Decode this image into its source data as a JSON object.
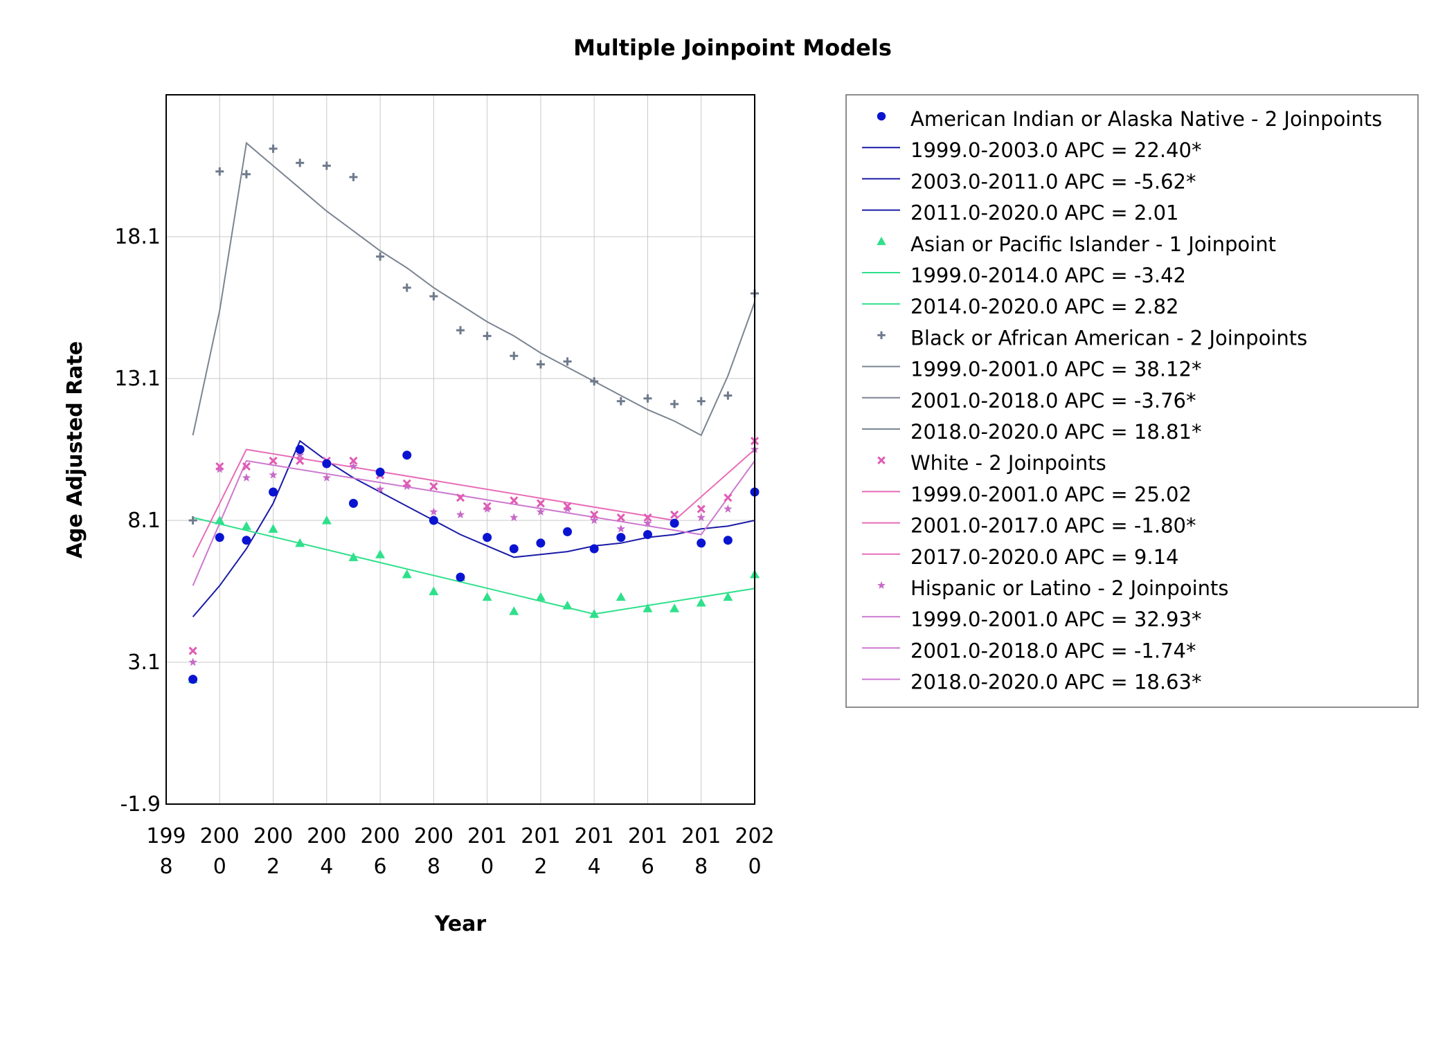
{
  "chart_data": {
    "type": "scatter",
    "title": "Multiple Joinpoint Models",
    "xlabel": "Year",
    "ylabel": "Age Adjusted Rate",
    "xlim": [
      1998,
      2020
    ],
    "ylim": [
      -1.9,
      23.1
    ],
    "x_ticks": [
      {
        "value": 1998,
        "line1": "199",
        "line2": "8"
      },
      {
        "value": 2000,
        "line1": "200",
        "line2": "0"
      },
      {
        "value": 2002,
        "line1": "200",
        "line2": "2"
      },
      {
        "value": 2004,
        "line1": "200",
        "line2": "4"
      },
      {
        "value": 2006,
        "line1": "200",
        "line2": "6"
      },
      {
        "value": 2008,
        "line1": "200",
        "line2": "8"
      },
      {
        "value": 2010,
        "line1": "201",
        "line2": "0"
      },
      {
        "value": 2012,
        "line1": "201",
        "line2": "2"
      },
      {
        "value": 2014,
        "line1": "201",
        "line2": "4"
      },
      {
        "value": 2016,
        "line1": "201",
        "line2": "6"
      },
      {
        "value": 2018,
        "line1": "201",
        "line2": "8"
      },
      {
        "value": 2020,
        "line1": "202",
        "line2": "0"
      }
    ],
    "y_ticks": [
      {
        "value": -1.9,
        "label": "-1.9"
      },
      {
        "value": 3.1,
        "label": "3.1"
      },
      {
        "value": 8.1,
        "label": "8.1"
      },
      {
        "value": 13.1,
        "label": "13.1"
      },
      {
        "value": 18.1,
        "label": "18.1"
      }
    ],
    "grid": true,
    "legend_position": "right",
    "series": [
      {
        "name": "American Indian or Alaska Native - 2 Joinpoints",
        "marker": "circle",
        "color": "#0a14d0",
        "line_color": "#1a1aa8",
        "x": [
          1999,
          2000,
          2001,
          2002,
          2003,
          2004,
          2005,
          2006,
          2007,
          2008,
          2009,
          2010,
          2011,
          2012,
          2013,
          2014,
          2015,
          2016,
          2017,
          2018,
          2019,
          2020
        ],
        "values": [
          2.5,
          7.5,
          7.4,
          9.1,
          10.6,
          10.1,
          8.7,
          9.8,
          10.4,
          8.1,
          6.1,
          7.5,
          7.1,
          7.3,
          7.7,
          7.1,
          7.5,
          7.6,
          8.0,
          7.3,
          7.4,
          9.1
        ],
        "fit_x": [
          1999,
          2000,
          2001,
          2002,
          2003,
          2004,
          2005,
          2006,
          2007,
          2008,
          2009,
          2010,
          2011,
          2012,
          2013,
          2014,
          2015,
          2016,
          2017,
          2018,
          2019,
          2020
        ],
        "fit_values": [
          4.7,
          5.8,
          7.1,
          8.7,
          10.9,
          10.2,
          9.6,
          9.1,
          8.6,
          8.1,
          7.6,
          7.2,
          6.8,
          6.9,
          7.0,
          7.2,
          7.3,
          7.5,
          7.6,
          7.8,
          7.9,
          8.1
        ],
        "legend_segments": [
          "1999.0-2003.0 APC  = 22.40*",
          "2003.0-2011.0 APC  = -5.62*",
          "2011.0-2020.0 APC  =  2.01"
        ]
      },
      {
        "name": "Asian or Pacific Islander - 1 Joinpoint",
        "marker": "triangle",
        "color": "#2ee08a",
        "line_color": "#2ee08a",
        "x": [
          1999,
          2000,
          2001,
          2002,
          2003,
          2004,
          2005,
          2006,
          2007,
          2008,
          2009,
          2010,
          2011,
          2012,
          2013,
          2014,
          2015,
          2016,
          2017,
          2018,
          2019,
          2020
        ],
        "values": [
          2.5,
          8.1,
          7.9,
          7.8,
          7.3,
          8.1,
          6.8,
          6.9,
          6.2,
          5.6,
          6.1,
          5.4,
          4.9,
          5.4,
          5.1,
          4.8,
          5.4,
          5.0,
          5.0,
          5.2,
          5.4,
          6.2
        ],
        "fit_x": [
          1999,
          2014,
          2020
        ],
        "fit_values": [
          8.2,
          4.8,
          5.7
        ],
        "legend_segments": [
          "1999.0-2014.0 APC  = -3.42",
          "2014.0-2020.0 APC  =  2.82"
        ]
      },
      {
        "name": "Black or African American - 2 Joinpoints",
        "marker": "plus",
        "color": "#6e7a8c",
        "line_color": "#7a8490",
        "x": [
          1999,
          2000,
          2001,
          2002,
          2003,
          2004,
          2005,
          2006,
          2007,
          2008,
          2009,
          2010,
          2011,
          2012,
          2013,
          2014,
          2015,
          2016,
          2017,
          2018,
          2019,
          2020
        ],
        "values": [
          8.1,
          20.4,
          20.3,
          21.2,
          20.7,
          20.6,
          20.2,
          17.4,
          16.3,
          16.0,
          14.8,
          14.6,
          13.9,
          13.6,
          13.7,
          13.0,
          12.3,
          12.4,
          12.2,
          12.3,
          12.5,
          16.1
        ],
        "fit_x": [
          1999,
          2000,
          2001,
          2002,
          2003,
          2004,
          2005,
          2006,
          2007,
          2008,
          2009,
          2010,
          2011,
          2012,
          2013,
          2014,
          2015,
          2016,
          2017,
          2018,
          2019,
          2020
        ],
        "fit_values": [
          11.1,
          15.5,
          21.4,
          20.6,
          19.8,
          19.0,
          18.3,
          17.6,
          17.0,
          16.3,
          15.7,
          15.1,
          14.6,
          14.0,
          13.5,
          13.0,
          12.5,
          12.0,
          11.6,
          11.1,
          13.2,
          15.8
        ],
        "legend_segments": [
          "1999.0-2001.0 APC  = 38.12*",
          "2001.0-2018.0 APC  = -3.76*",
          "2018.0-2020.0 APC  = 18.81*"
        ]
      },
      {
        "name": "White - 2 Joinpoints",
        "marker": "x",
        "color": "#e05cb4",
        "line_color": "#e86cb8",
        "x": [
          1999,
          2000,
          2001,
          2002,
          2003,
          2004,
          2005,
          2006,
          2007,
          2008,
          2009,
          2010,
          2011,
          2012,
          2013,
          2014,
          2015,
          2016,
          2017,
          2018,
          2019,
          2020
        ],
        "values": [
          3.5,
          10.0,
          10.0,
          10.2,
          10.2,
          10.2,
          10.2,
          9.7,
          9.4,
          9.3,
          8.9,
          8.6,
          8.8,
          8.7,
          8.6,
          8.3,
          8.2,
          8.2,
          8.3,
          8.5,
          8.9,
          10.9
        ],
        "fit_x": [
          1999,
          2001,
          2017,
          2020
        ],
        "fit_values": [
          6.8,
          10.6,
          8.1,
          10.6
        ],
        "legend_segments": [
          "1999.0-2001.0 APC  = 25.02",
          "2001.0-2017.0 APC  = -1.80*",
          "2017.0-2020.0 APC  =  9.14"
        ]
      },
      {
        "name": "Hispanic or Latino - 2 Joinpoints",
        "marker": "star",
        "color": "#c66ac8",
        "line_color": "#cc78d0",
        "x": [
          1999,
          2000,
          2001,
          2002,
          2003,
          2004,
          2005,
          2006,
          2007,
          2008,
          2009,
          2010,
          2011,
          2012,
          2013,
          2014,
          2015,
          2016,
          2017,
          2018,
          2019,
          2020
        ],
        "values": [
          3.1,
          9.9,
          9.6,
          9.7,
          10.4,
          9.6,
          10.0,
          9.2,
          9.3,
          8.4,
          8.3,
          8.5,
          8.2,
          8.4,
          8.5,
          8.1,
          7.8,
          8.0,
          8.0,
          8.2,
          8.5,
          10.6
        ],
        "fit_x": [
          1999,
          2001,
          2018,
          2020
        ],
        "fit_values": [
          5.8,
          10.2,
          7.6,
          10.2
        ],
        "legend_segments": [
          "1999.0-2001.0 APC  = 32.93*",
          "2001.0-2018.0 APC  = -1.74*",
          "2018.0-2020.0 APC  = 18.63*"
        ]
      }
    ]
  }
}
